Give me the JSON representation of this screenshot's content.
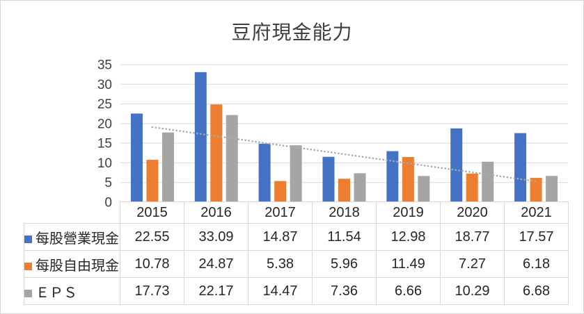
{
  "chart_data": {
    "type": "bar",
    "title": "豆府現金能力",
    "categories": [
      "2015",
      "2016",
      "2017",
      "2018",
      "2019",
      "2020",
      "2021"
    ],
    "series": [
      {
        "name": "每股營業現金",
        "color": "#4472C4",
        "values": [
          22.55,
          33.09,
          14.87,
          11.54,
          12.98,
          18.77,
          17.57
        ]
      },
      {
        "name": "每股自由現金",
        "color": "#ED7D31",
        "values": [
          10.78,
          24.87,
          5.38,
          5.96,
          11.49,
          7.27,
          6.18
        ]
      },
      {
        "name": "ＥＰＳ",
        "color": "#A5A5A5",
        "values": [
          17.73,
          22.17,
          14.47,
          7.36,
          6.66,
          10.29,
          6.68
        ]
      }
    ],
    "trendline": {
      "series": "ＥＰＳ",
      "fit": "linear",
      "style": "dotted",
      "color": "#ABABAB",
      "start_value": 19.1,
      "end_value": 5.3
    },
    "y_axis": {
      "min": 0,
      "max": 35,
      "tick_step": 5,
      "ticks": [
        0,
        5,
        10,
        15,
        20,
        25,
        30,
        35
      ]
    },
    "grid": "horizontal-only",
    "legend_position": "data-table-left-column",
    "colors": {
      "gridline": "#D9D9D9",
      "table_border": "#D9D9D9",
      "tick_text": "#404040",
      "table_text": "#262626",
      "title_text": "#404040"
    }
  }
}
